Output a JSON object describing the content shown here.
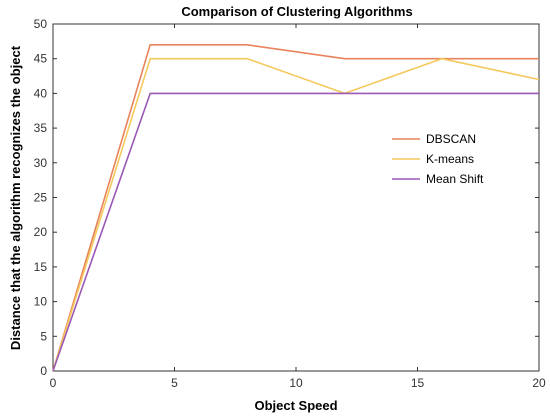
{
  "chart_data": {
    "type": "line",
    "title": "Comparison of Clustering Algorithms",
    "xlabel": "Object Speed",
    "ylabel": "Distance that the algorithm recognizes the object",
    "xlim": [
      0,
      20
    ],
    "ylim": [
      0,
      50
    ],
    "xticks": [
      0,
      5,
      10,
      15,
      20
    ],
    "yticks": [
      0,
      5,
      10,
      15,
      20,
      25,
      30,
      35,
      40,
      45,
      50
    ],
    "x": [
      0,
      4,
      8,
      12,
      16,
      20
    ],
    "series": [
      {
        "name": "DBSCAN",
        "color": "#e8835a",
        "values": [
          0,
          47,
          47,
          45,
          45,
          45
        ]
      },
      {
        "name": "K-means",
        "color": "#f4c95d",
        "values": [
          0,
          45,
          45,
          40,
          45,
          42
        ]
      },
      {
        "name": "Mean Shift",
        "color": "#9b59b6",
        "values": [
          0,
          40,
          40,
          40,
          40,
          40
        ]
      }
    ],
    "legend_position": "right",
    "grid": false
  }
}
